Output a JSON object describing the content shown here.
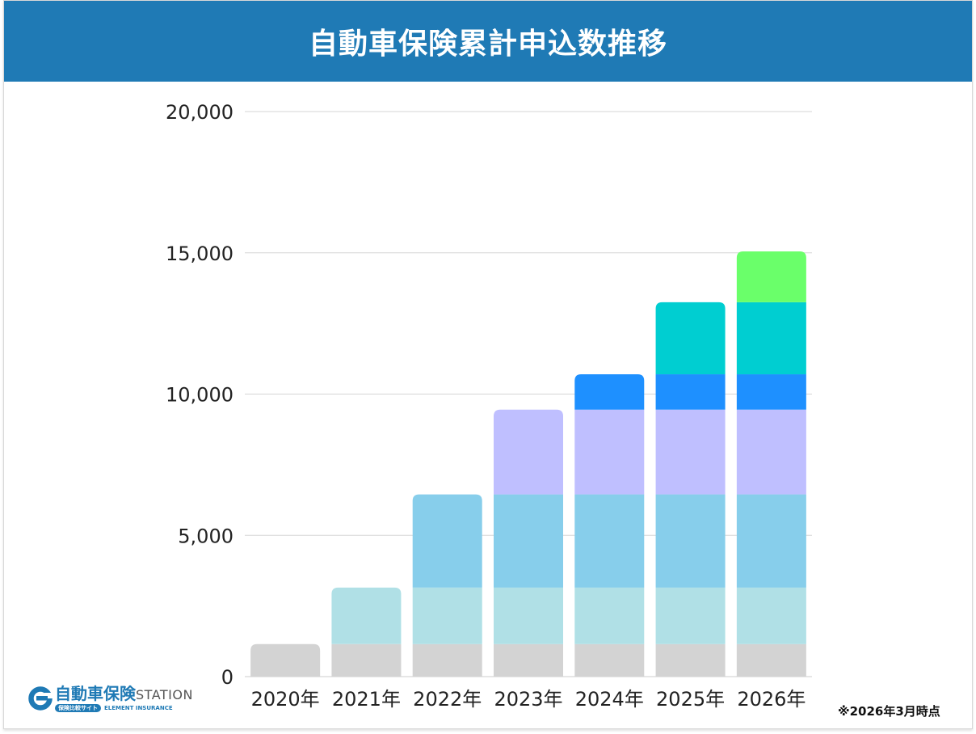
{
  "header": {
    "title": "自動車保険累計申込数推移",
    "background": "#1f7ab5"
  },
  "note": "※2026年3月時点",
  "logo": {
    "name": "自動車保険",
    "station": "STATION",
    "tagline": "保険比較サイト",
    "company": "ELEMENT INSURANCE",
    "color": "#1f7ab5"
  },
  "chart_data": {
    "type": "bar",
    "stacked": true,
    "title": "自動車保険累計申込数推移",
    "xlabel": "",
    "ylabel": "",
    "ylim": [
      0,
      20000
    ],
    "yticks": [
      0,
      5000,
      10000,
      15000,
      20000
    ],
    "ytick_labels": [
      "0",
      "5,000",
      "10,000",
      "15,000",
      "20,000"
    ],
    "grid": true,
    "legend": "none",
    "categories": [
      "2020年",
      "2021年",
      "2022年",
      "2023年",
      "2024年",
      "2025年",
      "2026年"
    ],
    "series": [
      {
        "color": "#d3d3d3",
        "values": [
          1150,
          1150,
          1150,
          1150,
          1150,
          1150,
          1150
        ]
      },
      {
        "color": "#b0e0e6",
        "values": [
          0,
          2000,
          2000,
          2000,
          2000,
          2000,
          2000
        ]
      },
      {
        "color": "#87ceeb",
        "values": [
          0,
          0,
          3300,
          3300,
          3300,
          3300,
          3300
        ]
      },
      {
        "color": "#bfbfff",
        "values": [
          0,
          0,
          0,
          3000,
          3000,
          3000,
          3000
        ]
      },
      {
        "color": "#1e90ff",
        "values": [
          0,
          0,
          0,
          0,
          1250,
          1250,
          1250
        ]
      },
      {
        "color": "#00ced1",
        "values": [
          0,
          0,
          0,
          0,
          0,
          2550,
          2550
        ]
      },
      {
        "color": "#6aff6a",
        "values": [
          0,
          0,
          0,
          0,
          0,
          0,
          1800
        ]
      }
    ]
  }
}
